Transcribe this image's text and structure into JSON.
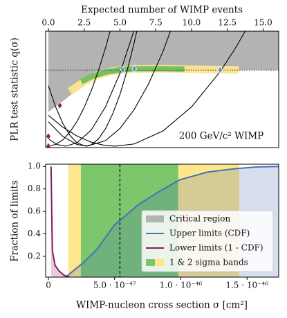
{
  "chart_data": [
    {
      "type": "line",
      "xlabel": "Expected number of WIMP events",
      "ylabel": "PLR test statistic q(σ)",
      "annotation": "200 GeV/c² WIMP",
      "xlim": [
        -0.19,
        16.09
      ],
      "xticks": [
        {
          "value": 0,
          "label": "0.0"
        },
        2.5,
        {
          "value": 5,
          "label": "5.0"
        },
        7.5,
        {
          "value": 10,
          "label": "10.0"
        },
        12.5,
        {
          "value": 15,
          "label": "15.0"
        }
      ],
      "ylim": [
        -0.05,
        4.1
      ],
      "threshold": 2.71,
      "critical_region": {
        "color": "#b3b3b3",
        "x": [
          0,
          1,
          2,
          3,
          4,
          5,
          6,
          7,
          8,
          10,
          16
        ],
        "values": [
          1.22,
          1.6,
          2.0,
          2.33,
          2.5,
          2.6,
          2.66,
          2.7,
          2.72,
          2.72,
          2.72
        ]
      },
      "bands": [
        {
          "color": "#fde68c",
          "x": [
            1.5,
            2.5,
            3.5,
            4.5,
            6,
            8,
            10,
            13.3
          ],
          "values": [
            1.95,
            2.3,
            2.55,
            2.68,
            2.75,
            2.76,
            2.74,
            2.72
          ]
        },
        {
          "color": "#6fbf5f",
          "x": [
            2.3,
            3,
            4,
            5,
            6,
            8,
            9.5
          ],
          "values": [
            2.3,
            2.48,
            2.64,
            2.72,
            2.76,
            2.76,
            2.75
          ]
        }
      ],
      "series": [
        {
          "color": "#000000",
          "x": [
            0,
            0.5,
            1,
            1.5,
            2,
            2.6,
            3,
            3.5,
            4,
            4.5,
            5,
            5.5,
            6,
            6.3
          ],
          "values": [
            2.16,
            1.41,
            0.82,
            0.39,
            0.12,
            0,
            0.05,
            0.26,
            0.63,
            1.16,
            1.84,
            2.69,
            3.7,
            4.38
          ]
        },
        {
          "color": "#000000",
          "x": [
            0,
            0.5,
            1,
            1.5,
            2,
            2.5,
            3,
            3.5,
            4,
            4.4
          ],
          "values": [
            0,
            0.06,
            0.22,
            0.5,
            0.88,
            1.38,
            1.98,
            2.7,
            3.52,
            4.26
          ]
        },
        {
          "color": "#000000",
          "x": [
            0,
            0.6,
            1.2,
            2,
            3,
            4,
            5,
            6,
            6.2
          ],
          "values": [
            0.26,
            0.06,
            0,
            0.12,
            0.58,
            1.41,
            2.6,
            4.15,
            4.5
          ]
        },
        {
          "color": "#000000",
          "x": [
            0,
            1,
            2,
            2.7,
            4,
            5,
            6,
            7,
            8,
            8.8
          ],
          "values": [
            0.87,
            0.35,
            0.06,
            0,
            0.2,
            0.63,
            1.31,
            2.22,
            3.37,
            4.47
          ]
        },
        {
          "color": "#000000",
          "x": [
            0,
            1,
            2,
            3,
            4,
            4.7,
            6,
            8,
            10,
            12,
            13,
            14
          ],
          "values": [
            1.1,
            0.68,
            0.36,
            0.14,
            0.02,
            0,
            0.08,
            0.54,
            1.4,
            2.66,
            3.44,
            4.32
          ]
        }
      ],
      "markers": [
        {
          "color": "#8b1a5c",
          "x": [
            0,
            0,
            0.8
          ],
          "values": [
            0,
            0.35,
            1.45
          ]
        },
        {
          "color": "#5b8fd6",
          "x": [
            5.2,
            6,
            12
          ],
          "values": [
            2.72,
            2.76,
            2.72
          ]
        }
      ]
    },
    {
      "type": "line",
      "xlabel": "WIMP-nucleon cross section σ [cm²]",
      "ylabel": "Fraction of limits",
      "xlim": [
        -2.1e-48,
        1.739e-46
      ],
      "xticks": [
        0,
        {
          "value": 5e-47,
          "label": "5.0 · 10⁻⁴⁷"
        },
        {
          "value": 1e-46,
          "label": "1.0 · 10⁻⁴⁶"
        },
        {
          "value": 1.5e-46,
          "label": "1.5 · 10⁻⁴⁶"
        }
      ],
      "ylim": [
        0.015,
        1.02
      ],
      "yticks": [
        0.2,
        0.4,
        0.6,
        0.8,
        {
          "value": 1,
          "label": "1.0"
        }
      ],
      "spans": [
        {
          "color": "#fde68c",
          "x": [
            1.5e-47,
            1.44e-46
          ]
        },
        {
          "color": "#7cc66b",
          "x": [
            2.45e-47,
            9.8e-47
          ]
        }
      ],
      "dashed_line": 5.4e-47,
      "series": [
        {
          "name": "Upper limits (CDF)",
          "color": "#4a6fb5",
          "x": [
            1.3e-47,
            2.6e-47,
            3.65e-47,
            5e-47,
            6.8e-47,
            8.4e-47,
            9.9e-47,
            1.2e-46,
            1.41e-46,
            1.57e-46,
            1.74e-46
          ],
          "values": [
            0.015,
            0.14,
            0.26,
            0.48,
            0.66,
            0.78,
            0.88,
            0.95,
            0.98,
            0.995,
            1.0
          ]
        },
        {
          "name": "Lower limits (1 - CDF)",
          "color": "#8b1a5c",
          "x": [
            2e-48,
            2.5e-48,
            3e-48,
            5e-48,
            8e-48,
            1.2e-47,
            1.6e-47
          ],
          "values": [
            1.0,
            0.6,
            0.25,
            0.12,
            0.07,
            0.03,
            0.015
          ]
        }
      ],
      "legend_loc": "lower right",
      "critical_label": "Critical region",
      "band_label": "1 & 2 sigma bands"
    }
  ]
}
